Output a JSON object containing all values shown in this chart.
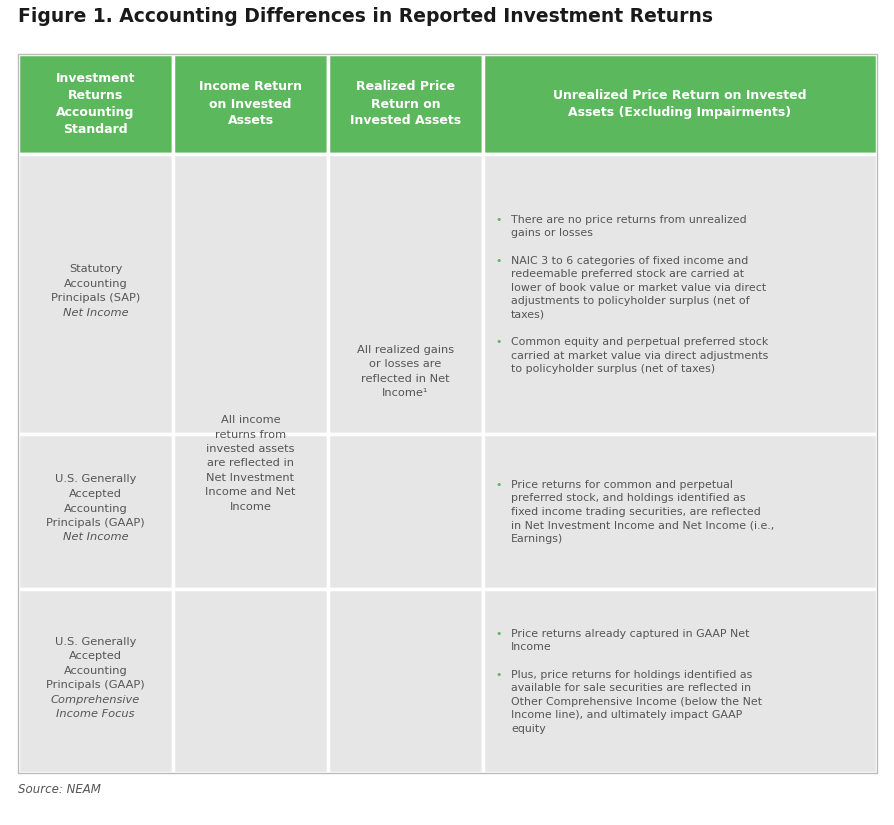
{
  "title": "Figure 1. Accounting Differences in Reported Investment Returns",
  "header_bg": "#5cb85c",
  "header_text_color": "#ffffff",
  "row_bg": "#e6e6e6",
  "body_text_color": "#555555",
  "bullet_color": "#5cb85c",
  "source_text": "Source: NEAM",
  "headers": [
    "Investment\nReturns\nAccounting\nStandard",
    "Income Return\non Invested\nAssets",
    "Realized Price\nReturn on\nInvested Assets",
    "Unrealized Price Return on Invested\nAssets (Excluding Impairments)"
  ],
  "row1_col1_normal": "Statutory\nAccounting\nPrincipals (SAP)",
  "row1_col1_italic": "Net Income",
  "row2_col1_normal": "U.S. Generally\nAccepted\nAccounting\nPrincipals (GAAP)",
  "row2_col1_italic": "Net Income",
  "row3_col1_normal": "U.S. Generally\nAccepted\nAccounting\nPrincipals (GAAP)",
  "row3_col1_italic": "Comprehensive\nIncome Focus",
  "col2_text": "All income\nreturns from\ninvested assets\nare reflected in\nNet Investment\nIncome and Net\nIncome",
  "col3_text": "All realized gains\nor losses are\nreflected in Net\nIncome¹",
  "row1_bullets": [
    "There are no price returns from unrealized gains or losses",
    "NAIC 3 to 6 categories of fixed income and redeemable preferred stock are carried at lower of book value or market value via direct adjustments to policyholder surplus (net of taxes)",
    "Common equity and perpetual preferred stock carried at market value via direct adjustments to policyholder surplus (net of taxes)"
  ],
  "row2_bullets": [
    "Price returns for common and perpetual preferred stock, and holdings identified as fixed income trading securities, are reflected in Net Investment Income and Net Income (i.e., Earnings)"
  ],
  "row3_bullets": [
    "Price returns already captured in GAAP Net Income",
    "Plus, price returns for holdings identified as available for sale securities are reflected in Other Comprehensive Income (below the Net Income line), and ultimately impact GAAP equity"
  ]
}
